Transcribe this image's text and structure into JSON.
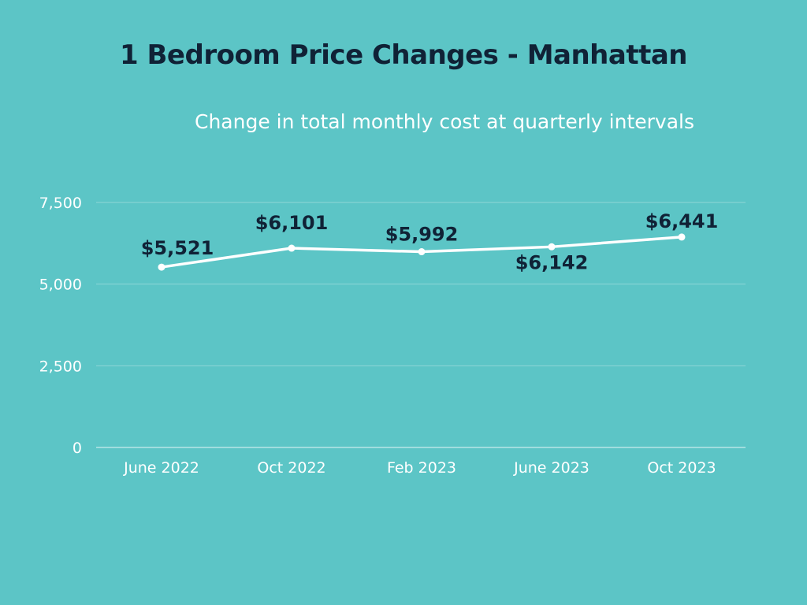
{
  "colors": {
    "background": "#5cc5c6",
    "title": "#102236",
    "line": "#ffffff",
    "label": "#102236"
  },
  "chart_data": {
    "type": "line",
    "title": "1 Bedroom Price Changes - Manhattan",
    "subtitle": "Change in total monthly cost at quarterly intervals",
    "xlabel": "",
    "ylabel": "",
    "categories": [
      "June 2022",
      "Oct 2022",
      "Feb 2023",
      "June 2023",
      "Oct 2023"
    ],
    "series": [
      {
        "values": [
          5521,
          6101,
          5992,
          6142,
          6441
        ],
        "labels": [
          "$5,521",
          "$6,101",
          "$5,992",
          "$6,142",
          "$6,441"
        ]
      }
    ],
    "y_ticks": [
      0,
      2500,
      5000,
      7500
    ],
    "y_tick_labels": [
      "0",
      "2,500",
      "5,000",
      "7,500"
    ],
    "ylim": [
      0,
      7500
    ],
    "grid": true,
    "legend": "none"
  }
}
